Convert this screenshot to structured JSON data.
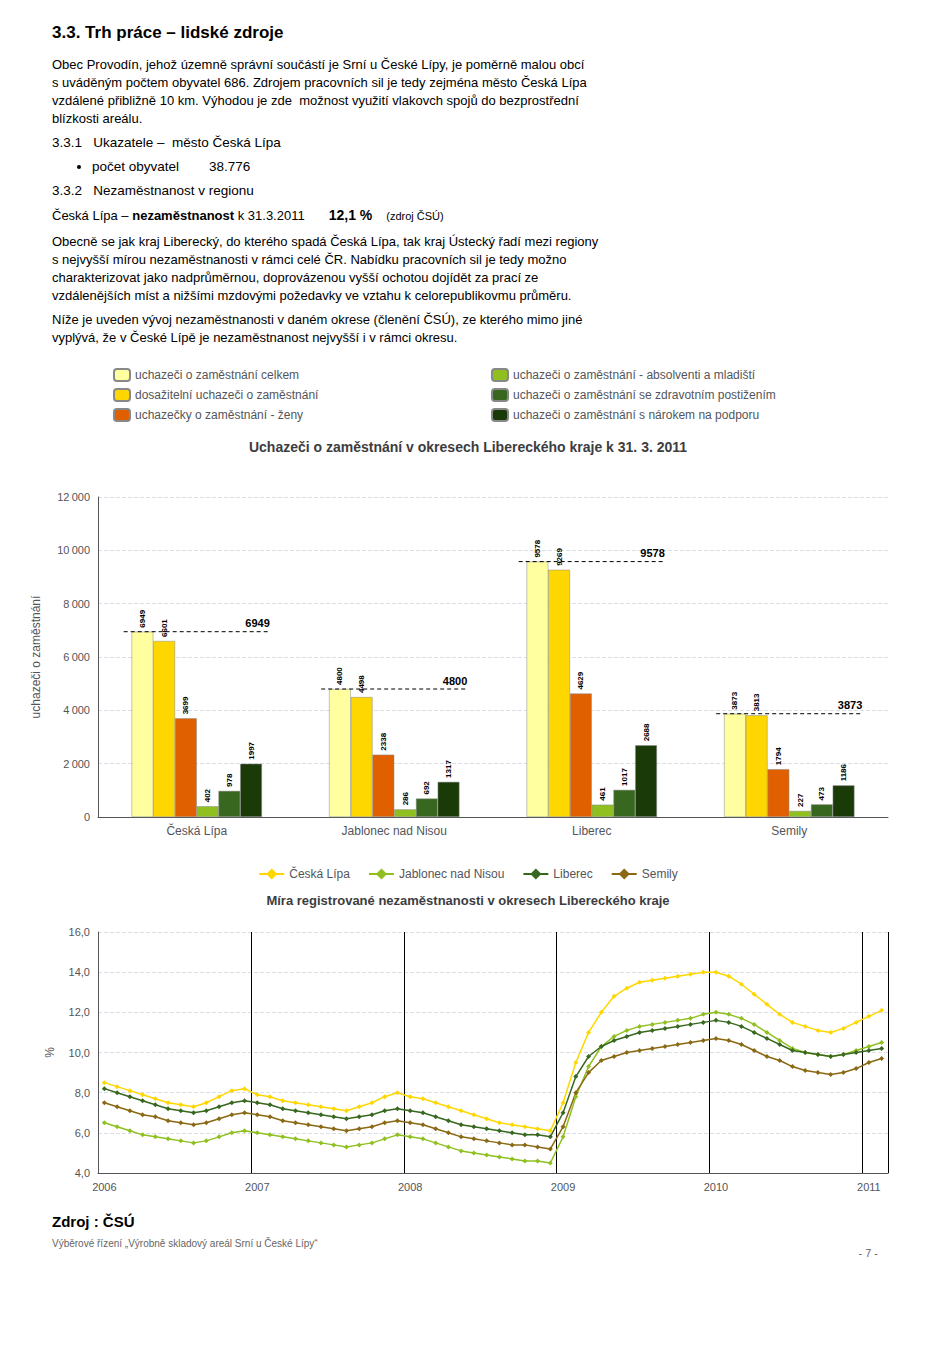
{
  "page_title": "3.3. Trh práce – lidské zdroje",
  "text_blocks": [
    {
      "kind": "paragraph",
      "lines": [
        "Obec Provodín, jehož územně správní součástí je Srní u České Lípy, je poměrně malou obcí",
        "s uváděným počtem obyvatel 686. Zdrojem pracovních sil je tedy zejména město Česká Lípa",
        "vzdálené přibližně 10 km. Výhodou je zde  možnost využití vlakovch spojů do bezprostřední",
        "blízkosti areálu."
      ]
    },
    {
      "kind": "heading",
      "text": "3.3.1   Ukazatele –  město Česká Lípa"
    },
    {
      "kind": "bullet",
      "text": "počet obyvatel        38.776"
    },
    {
      "kind": "heading",
      "text": "3.3.2   Nezaměstnanost v regionu"
    },
    {
      "kind": "runs",
      "runs": [
        "Česká Lípa – ",
        "nezaměstnanost",
        " k 31.3.2011",
        "12,1 %",
        "(zdroj ČSÚ)"
      ]
    },
    {
      "kind": "paragraph",
      "lines": [
        "Obecně se jak kraj Liberecký, do kterého spadá Česká Lípa, tak kraj Ústecký řadí mezi regiony",
        "s nejvyšší mírou nezaměstnanosti v rámci celé ČR. Nabídku pracovních sil je tedy možno",
        "charakterizovat jako nadprůměrnou, doprovázenou vyšší ochotou dojídět za prací ze",
        "vzdálenějších míst a nižšími mzdovými požedavky ve vztahu k celorepublikovmu průměru."
      ]
    },
    {
      "kind": "paragraph",
      "lines": [
        "Níže je uveden vývoj nezaměstnanosti v daném okrese (členění ČSÚ), ze kterého mimo jiné",
        "vyplývá, že v České Lípě je nezaměstnanost nejvyšší i v rámci okresu."
      ]
    }
  ],
  "chart_data": [
    {
      "type": "bar",
      "title": "Uchazeči o zaměstnání v okresech Libereckého kraje k 31. 3. 2011",
      "categories": [
        "Česká Lípa",
        "Jablonec nad Nisou",
        "Liberec",
        "Semily"
      ],
      "series": [
        {
          "name": "uchazeči o zaměstnání celkem",
          "color": "#FFFFA0",
          "values": [
            6949,
            4800,
            9578,
            3873
          ]
        },
        {
          "name": "dosažitelní uchazeči o zaměstnání",
          "color": "#FFD700",
          "values": [
            6601,
            4498,
            9269,
            3813
          ]
        },
        {
          "name": "uchazečky o zaměstnání - ženy",
          "color": "#E06000",
          "values": [
            3699,
            2338,
            4629,
            1794
          ]
        },
        {
          "name": "uchazeči o zaměstnání - absolventi a mladiští",
          "color": "#90C020",
          "values": [
            402,
            286,
            461,
            227
          ]
        },
        {
          "name": "uchazeči o zaměstnání se zdravotním postižením",
          "color": "#386820",
          "values": [
            978,
            692,
            1017,
            473
          ]
        },
        {
          "name": "uchazeči o zaměstnání s nárokem na podporu",
          "color": "#1A3A08",
          "values": [
            1997,
            1317,
            2688,
            1186
          ]
        }
      ],
      "annotations": [
        {
          "x": "Česká Lípa",
          "y": 6949,
          "text": "6949"
        },
        {
          "x": "Jablonec nad Nisou",
          "y": 4800,
          "text": "4800"
        },
        {
          "x": "Liberec",
          "y": 9578,
          "text": "9578"
        },
        {
          "x": "Semily",
          "y": 3873,
          "text": "3873"
        }
      ],
      "y_label": "uchazeči o zaměstnání",
      "ylim": [
        0,
        12000
      ],
      "yticks": [
        0,
        {
          "value": 2000,
          "label": "2 000"
        },
        {
          "value": 4000,
          "label": "4 000"
        },
        {
          "value": 6000,
          "label": "6 000"
        },
        {
          "value": 8000,
          "label": "8 000"
        },
        {
          "value": 10000,
          "label": "10 000"
        },
        {
          "value": 12000,
          "label": "12 000"
        }
      ],
      "data_labels": true,
      "grid": true,
      "legend": "top"
    },
    {
      "type": "line",
      "title": "Míra registrované nezaměstnanosti v okresech Libereckého kraje",
      "categories": [
        "2006",
        null,
        null,
        null,
        null,
        null,
        null,
        null,
        null,
        null,
        null,
        null,
        "2007",
        null,
        null,
        null,
        null,
        null,
        null,
        null,
        null,
        null,
        null,
        null,
        "2008",
        null,
        null,
        null,
        null,
        null,
        null,
        null,
        null,
        null,
        null,
        null,
        "2009",
        null,
        null,
        null,
        null,
        null,
        null,
        null,
        null,
        null,
        null,
        null,
        "2010",
        null,
        null,
        null,
        null,
        null,
        null,
        null,
        null,
        null,
        null,
        null,
        "2011",
        null
      ],
      "series": [
        {
          "name": "Česká Lípa",
          "color": "#FFD700",
          "values": [
            8.5,
            8.3,
            8.1,
            7.9,
            7.7,
            7.5,
            7.4,
            7.3,
            7.5,
            7.8,
            8.1,
            8.2,
            7.9,
            7.8,
            7.6,
            7.5,
            7.4,
            7.3,
            7.2,
            7.1,
            7.3,
            7.5,
            7.8,
            8.0,
            7.8,
            7.7,
            7.5,
            7.3,
            7.1,
            6.9,
            6.7,
            6.5,
            6.4,
            6.3,
            6.2,
            6.1,
            7.5,
            9.5,
            11.0,
            12.0,
            12.8,
            13.2,
            13.5,
            13.6,
            13.7,
            13.8,
            13.9,
            14.0,
            14.0,
            13.8,
            13.4,
            12.9,
            12.4,
            11.9,
            11.5,
            11.3,
            11.1,
            11.0,
            11.2,
            11.5,
            11.8,
            12.1
          ]
        },
        {
          "name": "Jablonec nad Nisou",
          "color": "#90C020",
          "values": [
            6.5,
            6.3,
            6.1,
            5.9,
            5.8,
            5.7,
            5.6,
            5.5,
            5.6,
            5.8,
            6.0,
            6.1,
            6.0,
            5.9,
            5.8,
            5.7,
            5.6,
            5.5,
            5.4,
            5.3,
            5.4,
            5.5,
            5.7,
            5.9,
            5.8,
            5.7,
            5.5,
            5.3,
            5.1,
            5.0,
            4.9,
            4.8,
            4.7,
            4.6,
            4.6,
            4.5,
            5.8,
            7.8,
            9.3,
            10.3,
            10.8,
            11.1,
            11.3,
            11.4,
            11.5,
            11.6,
            11.7,
            11.9,
            12.0,
            11.9,
            11.7,
            11.4,
            11.0,
            10.6,
            10.2,
            10.0,
            9.9,
            9.8,
            9.9,
            10.1,
            10.3,
            10.5
          ]
        },
        {
          "name": "Liberec",
          "color": "#386820",
          "values": [
            8.2,
            8.0,
            7.8,
            7.6,
            7.4,
            7.2,
            7.1,
            7.0,
            7.1,
            7.3,
            7.5,
            7.6,
            7.5,
            7.4,
            7.2,
            7.1,
            7.0,
            6.9,
            6.8,
            6.7,
            6.8,
            6.9,
            7.1,
            7.2,
            7.1,
            7.0,
            6.8,
            6.6,
            6.4,
            6.3,
            6.2,
            6.1,
            6.0,
            5.9,
            5.9,
            5.8,
            7.0,
            8.8,
            9.8,
            10.3,
            10.6,
            10.8,
            11.0,
            11.1,
            11.2,
            11.3,
            11.4,
            11.5,
            11.6,
            11.5,
            11.3,
            11.0,
            10.7,
            10.4,
            10.1,
            10.0,
            9.9,
            9.8,
            9.9,
            10.0,
            10.1,
            10.2
          ]
        },
        {
          "name": "Semily",
          "color": "#8B6914",
          "values": [
            7.5,
            7.3,
            7.1,
            6.9,
            6.8,
            6.6,
            6.5,
            6.4,
            6.5,
            6.7,
            6.9,
            7.0,
            6.9,
            6.8,
            6.6,
            6.5,
            6.4,
            6.3,
            6.2,
            6.1,
            6.2,
            6.3,
            6.5,
            6.6,
            6.5,
            6.4,
            6.2,
            6.0,
            5.8,
            5.7,
            5.6,
            5.5,
            5.4,
            5.4,
            5.3,
            5.2,
            6.3,
            8.0,
            9.0,
            9.6,
            9.8,
            10.0,
            10.1,
            10.2,
            10.3,
            10.4,
            10.5,
            10.6,
            10.7,
            10.6,
            10.4,
            10.1,
            9.8,
            9.6,
            9.3,
            9.1,
            9.0,
            8.9,
            9.0,
            9.2,
            9.5,
            9.7
          ]
        }
      ],
      "y_label": "%",
      "ylim": [
        4.0,
        16.0
      ],
      "yticks": [
        {
          "value": 4.0,
          "label": "4,0"
        },
        {
          "value": 6.0,
          "label": "6,0"
        },
        {
          "value": 8.0,
          "label": "8,0"
        },
        {
          "value": 10.0,
          "label": "10,0"
        },
        {
          "value": 12.0,
          "label": "12,0"
        },
        {
          "value": 14.0,
          "label": "14,0"
        },
        {
          "value": 16.0,
          "label": "16,0"
        }
      ],
      "marker": "diamond",
      "grid": true,
      "legend": "top"
    }
  ],
  "footer": {
    "source": "Zdroj : ČSÚ",
    "text": "Výběrové řízení „Výrobně skladový areál Srní u České Lípy“",
    "page_number": "- 7 -"
  }
}
